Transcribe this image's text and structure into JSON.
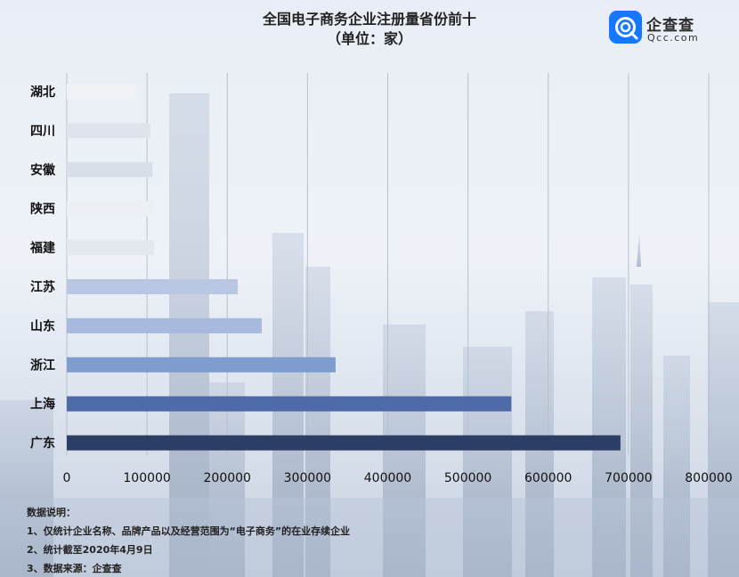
{
  "header": {
    "title": "全国电子商务企业注册量省份前十",
    "subtitle": "（单位：家）"
  },
  "logo": {
    "name": "企查查",
    "site": "Qcc.com"
  },
  "chart_data": {
    "type": "bar",
    "orientation": "horizontal",
    "title": "全国电子商务企业注册量省份前十",
    "unit": "（单位：家）",
    "categories": [
      "湖北",
      "四川",
      "安徽",
      "陕西",
      "福建",
      "江苏",
      "山东",
      "浙江",
      "上海",
      "广东"
    ],
    "values": [
      85000,
      104000,
      107000,
      109000,
      109000,
      213000,
      243000,
      335000,
      554000,
      690000
    ],
    "xlim": [
      0,
      800000
    ],
    "xticks": [
      "0",
      "100000",
      "200000",
      "300000",
      "400000",
      "500000",
      "600000",
      "700000",
      "800000"
    ],
    "grid": true,
    "bar_colors": [
      "#f0f2f5",
      "#dfe4ec",
      "#d9dfe8",
      "#eceff4",
      "#e3e8ef",
      "#b9c7e2",
      "#a7b9dc",
      "#7f9ccf",
      "#4e6aa8",
      "#2c3e66"
    ]
  },
  "notes": {
    "heading": "数据说明：",
    "items": [
      "1、仅统计企业名称、品牌产品以及经营范围为“电子商务”的在业存续企业",
      "2、统计截至2020年4月9日",
      "3、数据来源：企查查"
    ]
  },
  "colors": {
    "axis_text": "#111111",
    "grid": "#b9c0cc"
  }
}
